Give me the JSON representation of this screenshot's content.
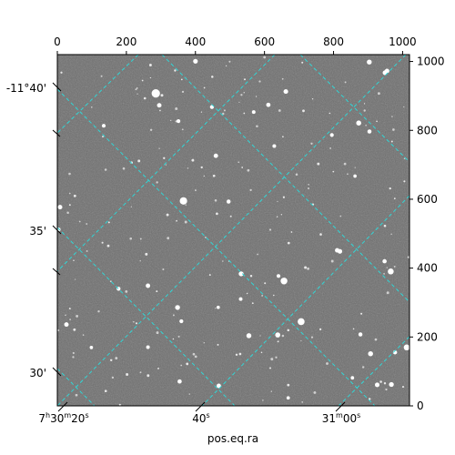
{
  "chart_data": {
    "type": "image",
    "xlabel": "pos.eq.ra",
    "ylabel": "",
    "pixel_x_ticks": [
      0,
      200,
      400,
      600,
      800,
      1000
    ],
    "pixel_y_ticks": [
      0,
      200,
      400,
      600,
      800,
      1000
    ],
    "pixel_xlim": [
      0,
      1020
    ],
    "pixel_ylim": [
      0,
      1020
    ],
    "ra_ticks": [
      {
        "label_prefix": "7",
        "h": "h",
        "mid": "30",
        "m": "m",
        "sec": "20",
        "s": "s",
        "value": "7h30m20s"
      },
      {
        "label_prefix": "",
        "h": "",
        "mid": "",
        "m": "",
        "sec": "40",
        "s": "s",
        "value": "7h30m40s"
      },
      {
        "label_prefix": "",
        "h": "",
        "mid": "31",
        "m": "m",
        "sec": "00",
        "s": "s",
        "value": "7h31m00s"
      }
    ],
    "dec_ticks": [
      "-11°40'",
      "35'",
      "30'"
    ],
    "grid": true,
    "grid_color": "#31d6d6",
    "colormap": "gray"
  }
}
